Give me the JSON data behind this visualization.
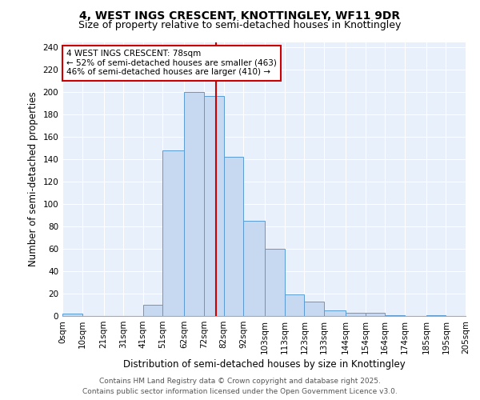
{
  "title": "4, WEST INGS CRESCENT, KNOTTINGLEY, WF11 9DR",
  "subtitle": "Size of property relative to semi-detached houses in Knottingley",
  "xlabel": "Distribution of semi-detached houses by size in Knottingley",
  "ylabel": "Number of semi-detached properties",
  "bin_labels": [
    "0sqm",
    "10sqm",
    "21sqm",
    "31sqm",
    "41sqm",
    "51sqm",
    "62sqm",
    "72sqm",
    "82sqm",
    "92sqm",
    "103sqm",
    "113sqm",
    "123sqm",
    "133sqm",
    "144sqm",
    "154sqm",
    "164sqm",
    "174sqm",
    "185sqm",
    "195sqm",
    "205sqm"
  ],
  "bin_edges": [
    0,
    10,
    21,
    31,
    41,
    51,
    62,
    72,
    82,
    92,
    103,
    113,
    123,
    133,
    144,
    154,
    164,
    174,
    185,
    195,
    205
  ],
  "bar_heights": [
    2,
    0,
    0,
    0,
    10,
    148,
    200,
    197,
    142,
    85,
    60,
    19,
    13,
    5,
    3,
    3,
    1,
    0,
    1,
    0,
    0
  ],
  "bar_color": "#c6d9f0",
  "bar_edgecolor": "#5b9bd5",
  "vline_color": "#cc0000",
  "vline_x": 78,
  "annotation_text": "4 WEST INGS CRESCENT: 78sqm\n← 52% of semi-detached houses are smaller (463)\n46% of semi-detached houses are larger (410) →",
  "annotation_box_color": "#ffffff",
  "annotation_box_edgecolor": "#cc0000",
  "ylim": [
    0,
    245
  ],
  "yticks": [
    0,
    20,
    40,
    60,
    80,
    100,
    120,
    140,
    160,
    180,
    200,
    220,
    240
  ],
  "bg_color": "#e8f0fb",
  "footer1": "Contains HM Land Registry data © Crown copyright and database right 2025.",
  "footer2": "Contains public sector information licensed under the Open Government Licence v3.0.",
  "title_fontsize": 10,
  "subtitle_fontsize": 9,
  "axis_label_fontsize": 8.5,
  "tick_fontsize": 7.5,
  "annotation_fontsize": 7.5,
  "footer_fontsize": 6.5
}
